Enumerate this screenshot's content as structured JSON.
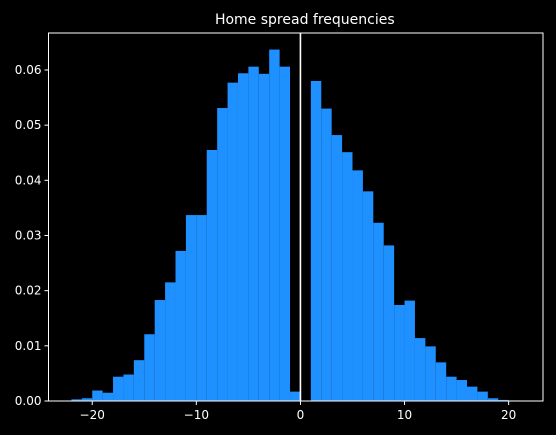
{
  "chart_data": {
    "type": "bar",
    "title": "Home spread frequencies",
    "xlabel": "",
    "ylabel": "",
    "xlim": [
      -24.2,
      23.3
    ],
    "ylim": [
      0,
      0.0667
    ],
    "x_ticks": [
      -20,
      -10,
      0,
      10,
      20
    ],
    "y_ticks": [
      0.0,
      0.01,
      0.02,
      0.03,
      0.04,
      0.05,
      0.06
    ],
    "y_tick_labels": [
      "0.00",
      "0.01",
      "0.02",
      "0.03",
      "0.04",
      "0.05",
      "0.06"
    ],
    "bin_width": 1,
    "bins": [
      {
        "x0": -22,
        "x1": -21,
        "value": 0.0003
      },
      {
        "x0": -21,
        "x1": -20,
        "value": 0.0005
      },
      {
        "x0": -20,
        "x1": -19,
        "value": 0.0019
      },
      {
        "x0": -19,
        "x1": -18,
        "value": 0.0015
      },
      {
        "x0": -18,
        "x1": -17,
        "value": 0.0044
      },
      {
        "x0": -17,
        "x1": -16,
        "value": 0.0048
      },
      {
        "x0": -16,
        "x1": -15,
        "value": 0.0074
      },
      {
        "x0": -15,
        "x1": -14,
        "value": 0.0121
      },
      {
        "x0": -14,
        "x1": -13,
        "value": 0.0183
      },
      {
        "x0": -13,
        "x1": -12,
        "value": 0.0215
      },
      {
        "x0": -12,
        "x1": -11,
        "value": 0.0272
      },
      {
        "x0": -11,
        "x1": -10,
        "value": 0.0337
      },
      {
        "x0": -10,
        "x1": -9,
        "value": 0.0337
      },
      {
        "x0": -9,
        "x1": -8,
        "value": 0.0455
      },
      {
        "x0": -8,
        "x1": -7,
        "value": 0.0531
      },
      {
        "x0": -7,
        "x1": -6,
        "value": 0.0577
      },
      {
        "x0": -6,
        "x1": -5,
        "value": 0.0594
      },
      {
        "x0": -5,
        "x1": -4,
        "value": 0.0606
      },
      {
        "x0": -4,
        "x1": -3,
        "value": 0.0593
      },
      {
        "x0": -3,
        "x1": -2,
        "value": 0.0637
      },
      {
        "x0": -2,
        "x1": -1,
        "value": 0.0606
      },
      {
        "x0": -1,
        "x1": 0,
        "value": 0.0017
      },
      {
        "x0": 0,
        "x1": 1,
        "value": 0.0
      },
      {
        "x0": 1,
        "x1": 2,
        "value": 0.058
      },
      {
        "x0": 2,
        "x1": 3,
        "value": 0.053
      },
      {
        "x0": 3,
        "x1": 4,
        "value": 0.0482
      },
      {
        "x0": 4,
        "x1": 5,
        "value": 0.0451
      },
      {
        "x0": 5,
        "x1": 6,
        "value": 0.0418
      },
      {
        "x0": 6,
        "x1": 7,
        "value": 0.038
      },
      {
        "x0": 7,
        "x1": 8,
        "value": 0.0323
      },
      {
        "x0": 8,
        "x1": 9,
        "value": 0.0282
      },
      {
        "x0": 9,
        "x1": 10,
        "value": 0.0174
      },
      {
        "x0": 10,
        "x1": 11,
        "value": 0.0182
      },
      {
        "x0": 11,
        "x1": 12,
        "value": 0.0114
      },
      {
        "x0": 12,
        "x1": 13,
        "value": 0.0099
      },
      {
        "x0": 13,
        "x1": 14,
        "value": 0.007
      },
      {
        "x0": 14,
        "x1": 15,
        "value": 0.0044
      },
      {
        "x0": 15,
        "x1": 16,
        "value": 0.0038
      },
      {
        "x0": 16,
        "x1": 17,
        "value": 0.0026
      },
      {
        "x0": 17,
        "x1": 18,
        "value": 0.0017
      },
      {
        "x0": 18,
        "x1": 19,
        "value": 0.0005
      },
      {
        "x0": 19,
        "x1": 20,
        "value": 0.0002
      },
      {
        "x0": 20,
        "x1": 21,
        "value": 0.0001
      }
    ],
    "reference_line": {
      "x": 0,
      "color": "#ffffff"
    },
    "bar_color": "#1e90ff",
    "background_color": "#000000",
    "axis_color": "#ffffff",
    "grid": false,
    "legend": "none"
  }
}
